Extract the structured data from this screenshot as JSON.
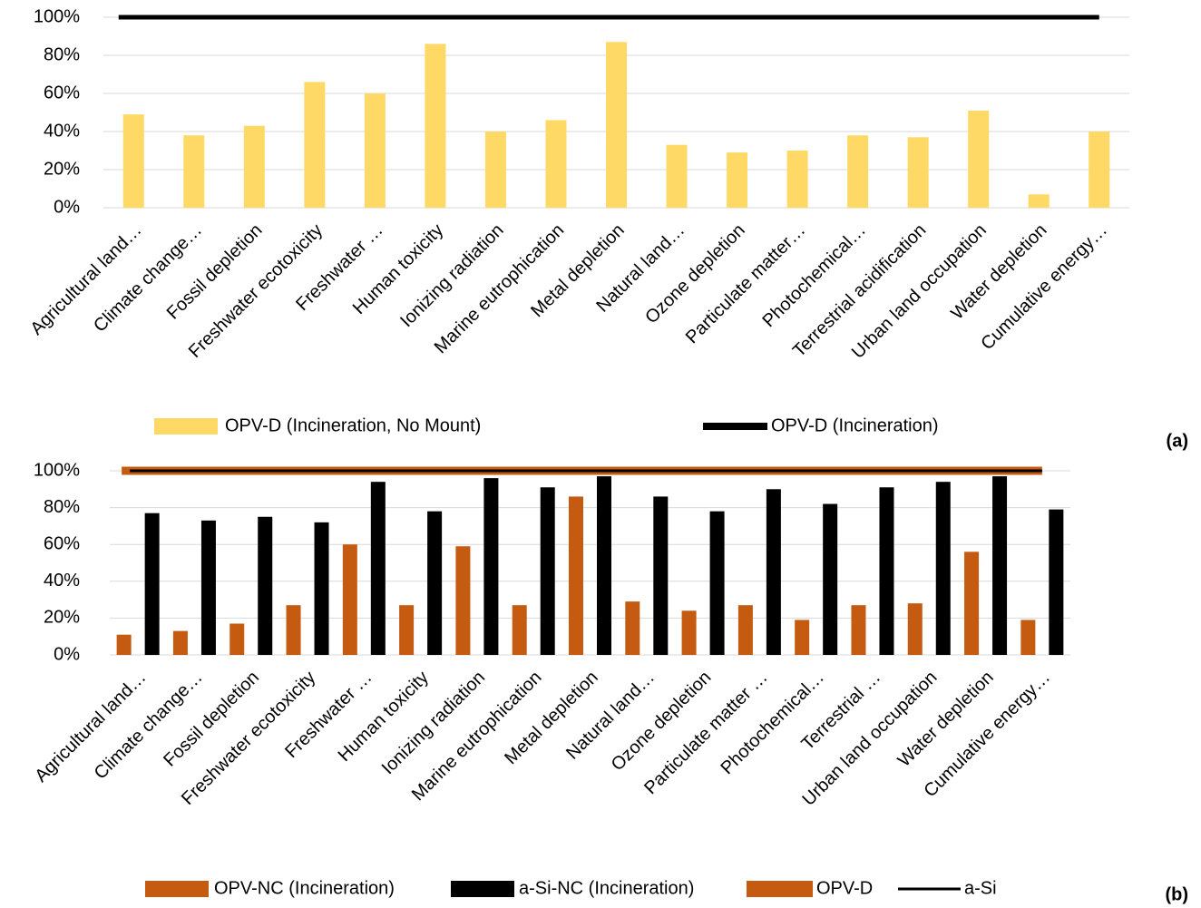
{
  "chart_data": [
    {
      "type": "bar",
      "panel_label": "(a)",
      "categories": [
        "Agricultural land…",
        "Climate change…",
        "Fossil depletion",
        "Freshwater ecotoxicity",
        "Freshwater …",
        "Human toxicity",
        "Ionizing radiation",
        "Marine eutrophication",
        "Metal depletion",
        "Natural land…",
        "Ozone depletion",
        "Particulate matter…",
        "Photochemical…",
        "Terrestrial acidification",
        "Urban land occupation",
        "Water depletion",
        "Cumulative energy…"
      ],
      "series": [
        {
          "name": "OPV-D (Incineration, No Mount)",
          "type": "bar",
          "color": "#FFD966",
          "values": [
            49,
            38,
            43,
            66,
            60,
            86,
            40,
            46,
            87,
            33,
            29,
            30,
            38,
            37,
            51,
            7,
            40
          ]
        },
        {
          "name": "OPV-D (Incineration)",
          "type": "line",
          "color": "#000000",
          "values": [
            100,
            100,
            100,
            100,
            100,
            100,
            100,
            100,
            100,
            100,
            100,
            100,
            100,
            100,
            100,
            100,
            100
          ]
        }
      ],
      "ylim": [
        0,
        100
      ],
      "yticks": [
        {
          "value": 0,
          "label": "0%"
        },
        {
          "value": 20,
          "label": "20%"
        },
        {
          "value": 40,
          "label": "40%"
        },
        {
          "value": 60,
          "label": "60%"
        },
        {
          "value": 80,
          "label": "80%"
        },
        {
          "value": 100,
          "label": "100%"
        }
      ],
      "grid": true
    },
    {
      "type": "bar",
      "panel_label": "(b)",
      "categories": [
        "Agricultural land…",
        "Climate change…",
        "Fossil depletion",
        "Freshwater ecotoxicity",
        "Freshwater …",
        "Human toxicity",
        "Ionizing radiation",
        "Marine eutrophication",
        "Metal depletion",
        "Natural land…",
        "Ozone depletion",
        "Particulate matter …",
        "Photochemical…",
        "Terrestrial …",
        "Urban land occupation",
        "Water depletion",
        "Cumulative energy…"
      ],
      "series": [
        {
          "name": "OPV-NC (Incineration)",
          "type": "bar",
          "color": "#C55A11",
          "values": [
            11,
            13,
            17,
            27,
            60,
            27,
            59,
            27,
            86,
            29,
            24,
            27,
            19,
            27,
            28,
            56,
            19
          ]
        },
        {
          "name": "a-Si-NC (Incineration)",
          "type": "bar",
          "color": "#000000",
          "values": [
            77,
            73,
            75,
            72,
            94,
            78,
            96,
            91,
            97,
            86,
            78,
            90,
            82,
            91,
            94,
            97,
            79
          ]
        },
        {
          "name": "OPV-D",
          "type": "line",
          "color": "#C55A11",
          "values": [
            100,
            100,
            100,
            100,
            100,
            100,
            100,
            100,
            100,
            100,
            100,
            100,
            100,
            100,
            100,
            100,
            100
          ]
        },
        {
          "name": "a-Si",
          "type": "line",
          "color": "#000000",
          "values": [
            100,
            100,
            100,
            100,
            100,
            100,
            100,
            100,
            100,
            100,
            100,
            100,
            100,
            100,
            100,
            100,
            100
          ]
        }
      ],
      "ylim": [
        0,
        100
      ],
      "yticks": [
        {
          "value": 0,
          "label": "0%"
        },
        {
          "value": 20,
          "label": "20%"
        },
        {
          "value": 40,
          "label": "40%"
        },
        {
          "value": 60,
          "label": "60%"
        },
        {
          "value": 80,
          "label": "80%"
        },
        {
          "value": 100,
          "label": "100%"
        }
      ],
      "grid": true
    }
  ]
}
